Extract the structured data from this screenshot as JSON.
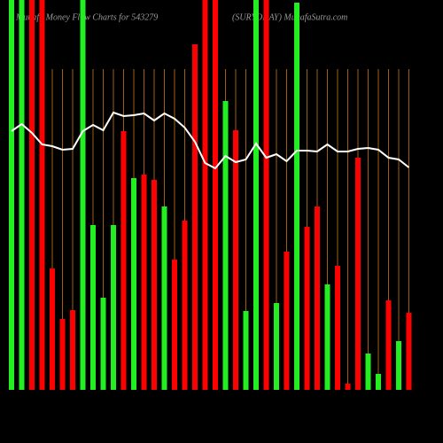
{
  "chart_data": {
    "type": "bar",
    "title": "Munafa Money Flow Charts for 543279",
    "subtitle": "(SURYODAY) MunafaSutra.com",
    "categories": [
      null,
      null,
      null,
      null,
      null,
      null,
      null,
      null,
      null,
      null,
      null,
      null,
      null,
      null,
      null,
      null,
      null,
      null,
      null,
      null,
      null,
      null,
      null,
      null,
      null,
      null,
      null,
      null,
      null,
      null,
      null,
      null,
      null,
      null,
      null,
      null,
      null,
      null,
      null,
      null
    ],
    "values": [
      440,
      440,
      440,
      440,
      137,
      80,
      90,
      440,
      186,
      104,
      186,
      292,
      239,
      243,
      237,
      207,
      147,
      191,
      390,
      440,
      440,
      326,
      293,
      89,
      440,
      440,
      98,
      156,
      437,
      184,
      207,
      119,
      140,
      7,
      262,
      41,
      18,
      101,
      55,
      87
    ],
    "colors": [
      "#22ee22",
      "#22ee22",
      "#ff0000",
      "#ff0000",
      "#ff0000",
      "#ff0000",
      "#ff0000",
      "#22ee22",
      "#22ee22",
      "#22ee22",
      "#22ee22",
      "#ff0000",
      "#22ee22",
      "#ff0000",
      "#ff0000",
      "#22ee22",
      "#ff0000",
      "#ff0000",
      "#ff0000",
      "#ff0000",
      "#ff0000",
      "#22ee22",
      "#ff0000",
      "#22ee22",
      "#22ee22",
      "#ff0000",
      "#22ee22",
      "#ff0000",
      "#22ee22",
      "#ff0000",
      "#ff0000",
      "#22ee22",
      "#ff0000",
      "#ff0000",
      "#ff0000",
      "#22ee22",
      "#22ee22",
      "#ff0000",
      "#22ee22",
      "#ff0000"
    ],
    "line_values": [
      292,
      300,
      290,
      277,
      275,
      271,
      272,
      292,
      299,
      293,
      313,
      309,
      310,
      312,
      304,
      312,
      306,
      296,
      280,
      256,
      250,
      264,
      257,
      260,
      278,
      262,
      266,
      258,
      270,
      270,
      269,
      277,
      269,
      269,
      272,
      273,
      271,
      262,
      260,
      251
    ],
    "line_color": "#ffffff",
    "grid_color": "#a0600f",
    "ylim": [
      0,
      440
    ]
  }
}
